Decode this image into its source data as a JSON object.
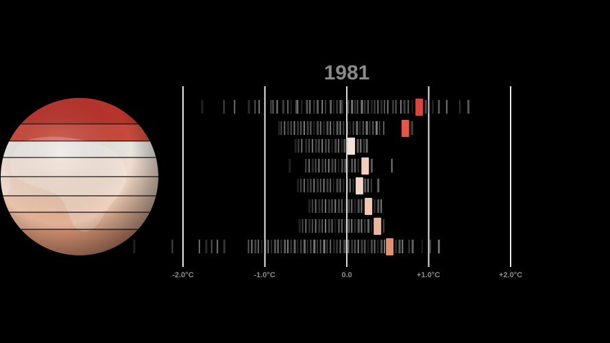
{
  "title": "1981",
  "chart_data": {
    "type": "scatter",
    "title": "1981",
    "xlabel": "",
    "ylabel": "",
    "xlim": [
      -2.0,
      2.0
    ],
    "grid": true,
    "x_ticks": [
      {
        "value": -2.0,
        "label": "-2.0°C"
      },
      {
        "value": -1.0,
        "label": "-1.0°C"
      },
      {
        "value": 0.0,
        "label": "0.0"
      },
      {
        "value": 1.0,
        "label": "+1.0°C"
      },
      {
        "value": 2.0,
        "label": "+2.0°C"
      }
    ],
    "highlighted_year": "1981",
    "bands": [
      {
        "band": 1,
        "anomaly": 0.88,
        "color": "#d8473f",
        "history": [
          -1.77,
          -1.5,
          -1.37,
          -1.2,
          -1.12,
          -1.07,
          -0.93,
          -0.9,
          -0.85,
          -0.78,
          -0.72,
          -0.68,
          -0.62,
          -0.6,
          -0.55,
          -0.49,
          -0.45,
          -0.4,
          -0.36,
          -0.3,
          -0.26,
          -0.2,
          -0.16,
          -0.12,
          -0.08,
          -0.05,
          0.02,
          0.06,
          0.1,
          0.13,
          0.18,
          0.22,
          0.26,
          0.3,
          0.34,
          0.38,
          0.42,
          0.46,
          0.5,
          0.56,
          0.6,
          0.66,
          0.7,
          0.75,
          0.8,
          0.96,
          1.0,
          1.05,
          1.12,
          1.22,
          1.38,
          1.48
        ]
      },
      {
        "band": 2,
        "anomaly": 0.71,
        "color": "#e0574c",
        "history": [
          -0.83,
          -0.8,
          -0.76,
          -0.72,
          -0.68,
          -0.64,
          -0.6,
          -0.56,
          -0.52,
          -0.48,
          -0.44,
          -0.4,
          -0.36,
          -0.32,
          -0.28,
          -0.24,
          -0.2,
          -0.16,
          -0.12,
          -0.08,
          -0.04,
          0.0,
          0.04,
          0.08,
          0.12,
          0.16,
          0.2,
          0.24,
          0.28,
          0.32,
          0.36,
          0.4,
          0.45,
          0.78,
          0.8
        ]
      },
      {
        "band": 3,
        "anomaly": 0.05,
        "color": "#f4e1d6",
        "history": [
          -0.63,
          -0.59,
          -0.55,
          -0.5,
          -0.46,
          -0.42,
          -0.38,
          -0.34,
          -0.3,
          -0.26,
          -0.22,
          -0.18,
          -0.14,
          -0.1,
          -0.06,
          -0.03,
          0.0,
          0.09,
          0.13,
          0.17,
          0.21,
          0.24
        ]
      },
      {
        "band": 4,
        "anomaly": 0.22,
        "color": "#f0cfbd",
        "history": [
          -0.7,
          -0.5,
          -0.46,
          -0.42,
          -0.38,
          -0.34,
          -0.3,
          -0.26,
          -0.22,
          -0.18,
          -0.14,
          -0.1,
          -0.06,
          -0.02,
          0.02,
          0.06,
          0.1,
          0.14,
          0.3,
          0.55
        ]
      },
      {
        "band": 5,
        "anomaly": 0.15,
        "color": "#f2d7c7",
        "history": [
          -0.6,
          -0.56,
          -0.52,
          -0.48,
          -0.44,
          -0.4,
          -0.36,
          -0.32,
          -0.28,
          -0.24,
          -0.2,
          -0.16,
          -0.12,
          -0.08,
          -0.04,
          0.0,
          0.04,
          0.08,
          0.22,
          0.26,
          0.3,
          0.38
        ]
      },
      {
        "band": 6,
        "anomaly": 0.26,
        "color": "#eec8b3",
        "history": [
          -0.46,
          -0.42,
          -0.38,
          -0.34,
          -0.3,
          -0.26,
          -0.22,
          -0.18,
          -0.14,
          -0.1,
          -0.06,
          -0.02,
          0.02,
          0.06,
          0.1,
          0.14,
          0.18,
          0.34,
          0.38,
          0.42
        ]
      },
      {
        "band": 7,
        "anomaly": 0.37,
        "color": "#eab59c",
        "history": [
          -0.58,
          -0.54,
          -0.5,
          -0.46,
          -0.42,
          -0.38,
          -0.34,
          -0.3,
          -0.26,
          -0.22,
          -0.18,
          -0.14,
          -0.1,
          -0.06,
          -0.02,
          0.02,
          0.06,
          0.1,
          0.14,
          0.18,
          0.22,
          0.26,
          0.3,
          0.45
        ]
      },
      {
        "band": 8,
        "anomaly": 0.52,
        "color": "#e49072",
        "history": [
          -2.6,
          -2.13,
          -1.8,
          -1.72,
          -1.65,
          -1.58,
          -1.5,
          -1.2,
          -1.16,
          -1.12,
          -1.08,
          -1.04,
          -1.0,
          -0.96,
          -0.92,
          -0.88,
          -0.84,
          -0.8,
          -0.76,
          -0.72,
          -0.68,
          -0.64,
          -0.6,
          -0.56,
          -0.52,
          -0.48,
          -0.44,
          -0.4,
          -0.36,
          -0.32,
          -0.28,
          -0.24,
          -0.2,
          -0.16,
          -0.12,
          -0.08,
          -0.04,
          -0.02,
          0.02,
          0.06,
          0.1,
          0.14,
          0.18,
          0.22,
          0.26,
          0.3,
          0.34,
          0.38,
          0.42,
          0.46,
          0.6,
          0.64,
          0.68,
          0.76,
          0.8,
          0.92,
          1.02,
          1.12
        ]
      }
    ]
  },
  "globe": {
    "band_colors": [
      "#b8342c",
      "#c84a3c",
      "#e8e5df",
      "#f1ddd0",
      "#ecd2c0",
      "#e8c3ab",
      "#e2b195",
      "#d99474"
    ]
  }
}
